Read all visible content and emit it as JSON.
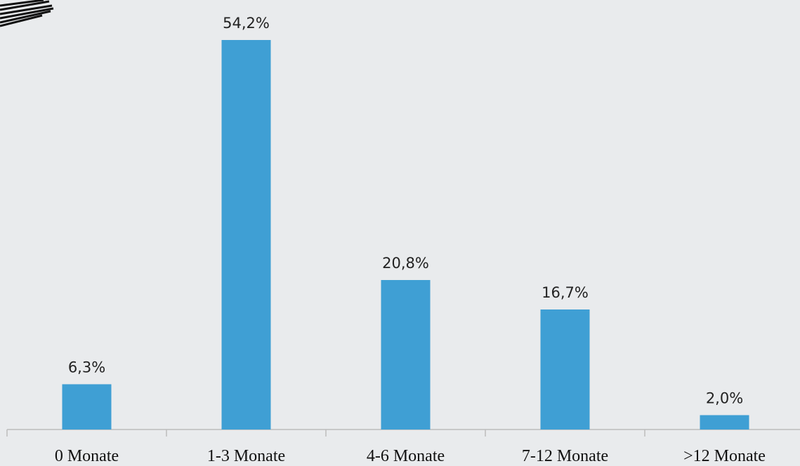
{
  "chart_data": {
    "type": "bar",
    "categories": [
      "0 Monate",
      "1-3 Monate",
      "4-6 Monate",
      "7-12 Monate",
      ">12 Monate"
    ],
    "values": [
      6.3,
      54.2,
      20.8,
      16.7,
      2.0
    ],
    "value_labels": [
      "6,3%",
      "54,2%",
      "20,8%",
      "16,7%",
      "2,0%"
    ],
    "color": "#3f9fd4"
  }
}
